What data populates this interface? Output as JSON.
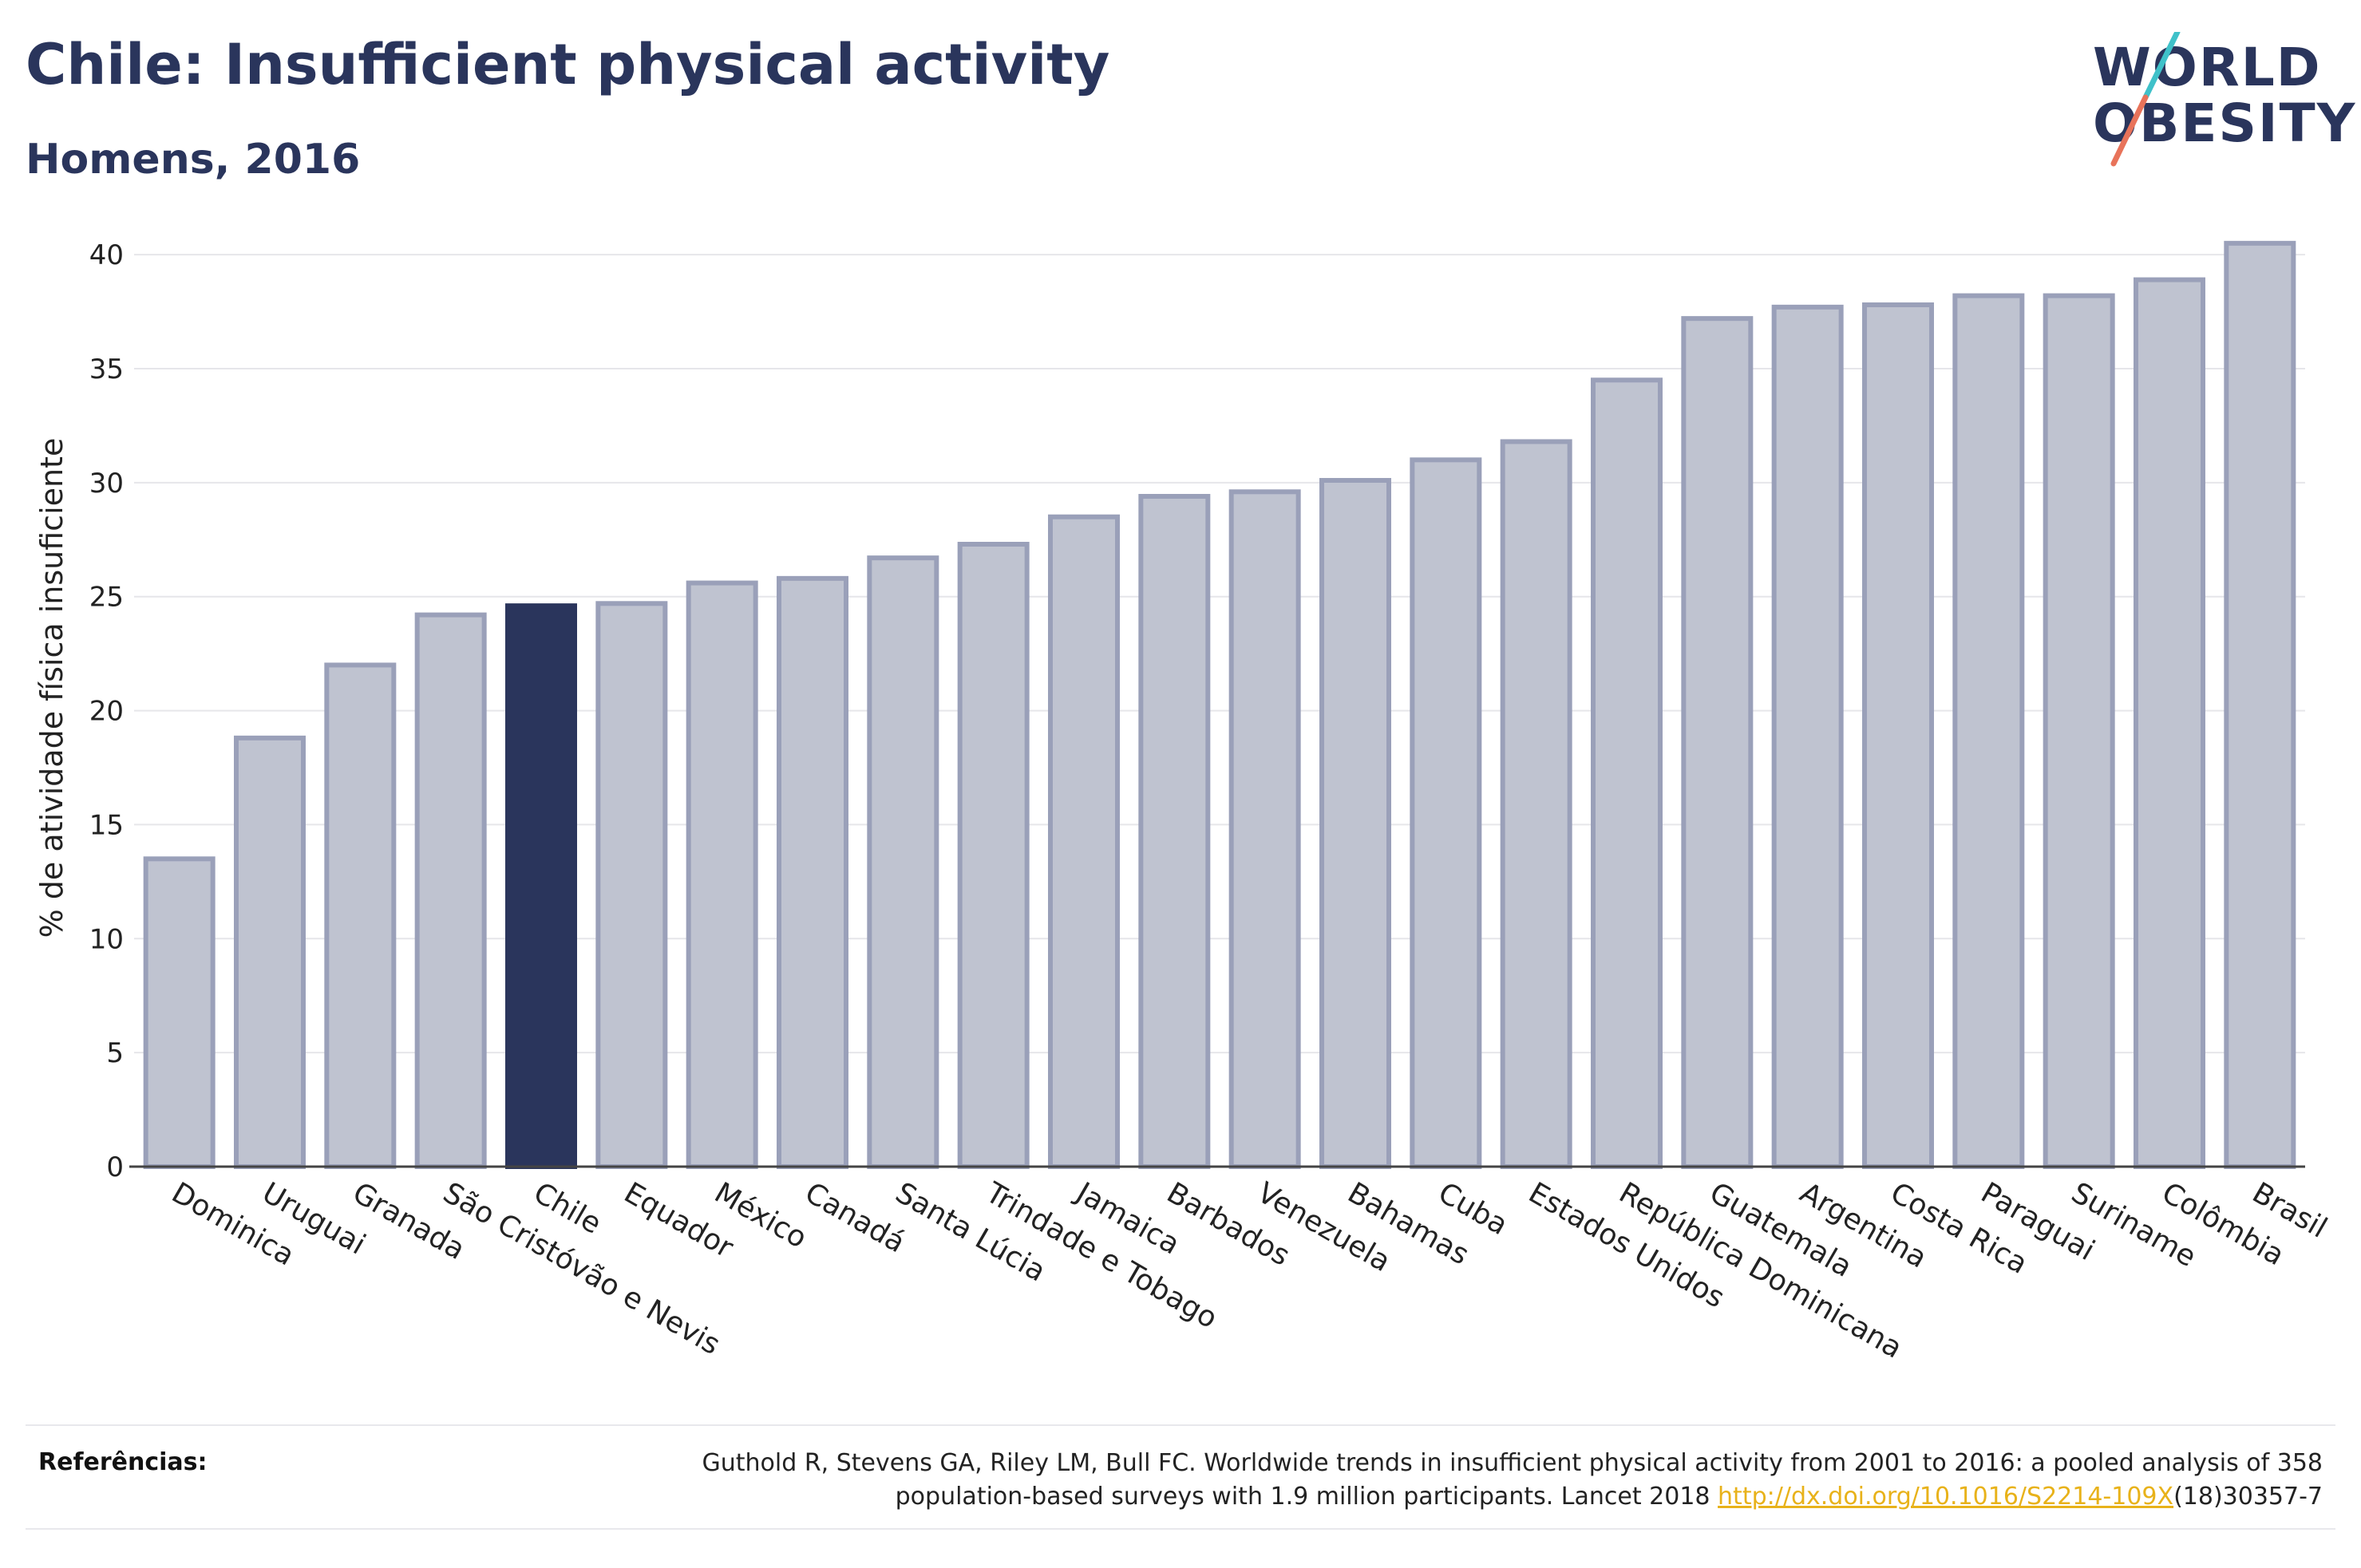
{
  "header": {
    "title": "Chile: Insufficient physical activity",
    "subtitle": "Homens, 2016"
  },
  "logo": {
    "line1": "WORLD",
    "line2": "OBESITY",
    "accent_colors": [
      "#3fc1c9",
      "#e8735a"
    ]
  },
  "colors": {
    "bar_fill": "#bfc3d0",
    "bar_stroke": "#9aa0b9",
    "highlight_fill": "#2a355c",
    "axis_text": "#222222",
    "grid": "#e6e6ea"
  },
  "chart_data": {
    "type": "bar",
    "title": "Chile: Insufficient physical activity",
    "subtitle": "Homens, 2016",
    "ylabel": "% de atividade física insuficiente",
    "xlabel": "",
    "ylim": [
      0,
      42
    ],
    "yticks": [
      0,
      5,
      10,
      15,
      20,
      25,
      30,
      35,
      40
    ],
    "grid": true,
    "highlight": "Chile",
    "categories": [
      "Dominica",
      "Uruguai",
      "Granada",
      "São Cristóvão e Nevis",
      "Chile",
      "Equador",
      "México",
      "Canadá",
      "Santa Lúcia",
      "Trindade e Tobago",
      "Jamaica",
      "Barbados",
      "Venezuela",
      "Bahamas",
      "Cuba",
      "Estados Unidos",
      "República Dominicana",
      "Guatemala",
      "Argentina",
      "Costa Rica",
      "Paraguai",
      "Suriname",
      "Colômbia",
      "Brasil"
    ],
    "values": [
      13.5,
      18.8,
      22.0,
      24.2,
      24.6,
      24.7,
      25.6,
      25.8,
      26.7,
      27.3,
      28.5,
      29.4,
      29.6,
      30.1,
      31.0,
      31.8,
      34.5,
      37.2,
      37.7,
      37.8,
      38.2,
      38.2,
      38.9,
      40.5
    ]
  },
  "references": {
    "label": "Referências:",
    "text_line1": "Guthold R, Stevens GA, Riley LM, Bull FC. Worldwide trends in insufficient physical activity from 2001 to 2016: a pooled analysis of 358",
    "text_line2_prefix": "population-based surveys with 1.9 million participants. Lancet 2018 ",
    "link": "http://dx.doi.org/10.1016/S2214-109X",
    "text_line2_suffix": "(18)30357-7"
  }
}
